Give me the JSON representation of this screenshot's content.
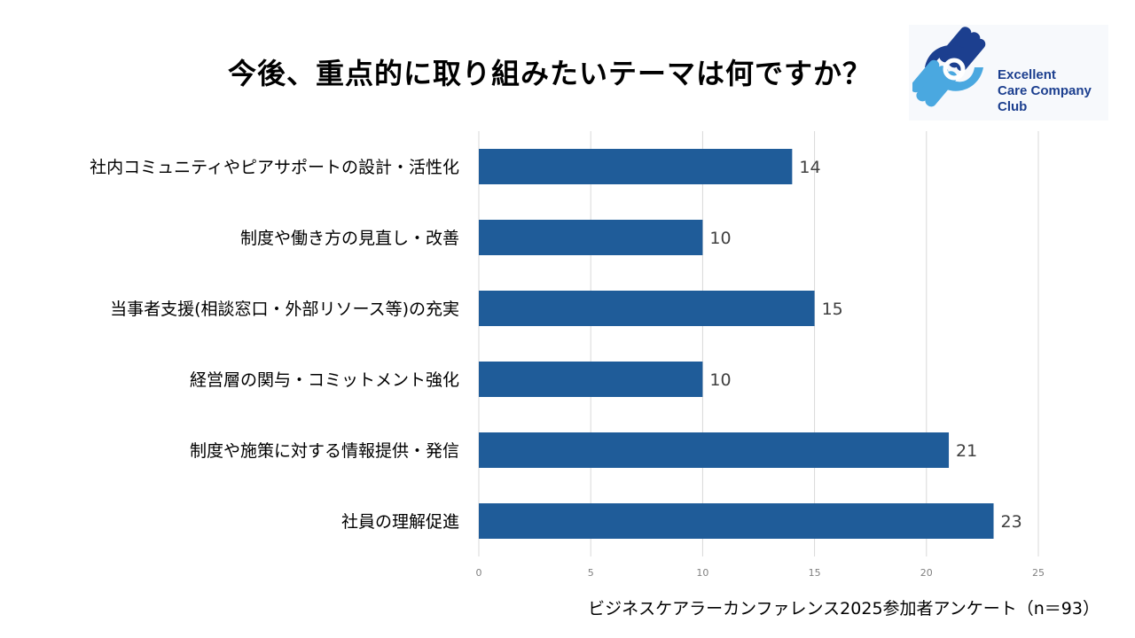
{
  "title": "今後、重点的に取り組みたいテーマは何ですか？",
  "logo": {
    "line1": "Excellent",
    "line2": "Care Company",
    "line3": "Club",
    "colors": {
      "dark": "#1c3f8f",
      "light": "#4aa8e0"
    }
  },
  "source": "ビジネスケアラーカンファレンス2025参加者アンケート（n＝93）",
  "chart_data": {
    "type": "bar",
    "orientation": "horizontal",
    "categories": [
      "社内コミュニティやピアサポートの設計・活性化",
      "制度や働き方の見直し・改善",
      "当事者支援(相談窓口・外部リソース等)の充実",
      "経営層の関与・コミットメント強化",
      "制度や施策に対する情報提供・発信",
      "社員の理解促進"
    ],
    "values": [
      14,
      10,
      15,
      10,
      21,
      23
    ],
    "xlim": [
      0,
      25
    ],
    "xticks": [
      0,
      5,
      10,
      15,
      20,
      25
    ],
    "grid": true,
    "bar_color": "#1f5c99",
    "xlabel": "",
    "ylabel": ""
  }
}
